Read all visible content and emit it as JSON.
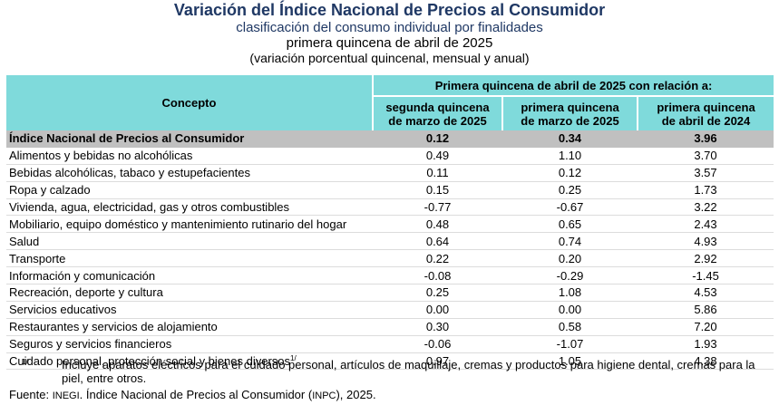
{
  "header": {
    "title": "Variación del Índice Nacional de Precios al Consumidor",
    "subtitle": "clasificación del consumo individual por finalidades",
    "period": "primera quincena de abril de 2025",
    "units": "(variación porcentual quincenal, mensual y anual)"
  },
  "table": {
    "concept_header": "Concepto",
    "group_header": "Primera quincena de abril de 2025 con relación a:",
    "col_headers": [
      {
        "line1": "segunda quincena",
        "line2": "de marzo de 2025"
      },
      {
        "line1": "primera quincena",
        "line2": "de marzo de 2025"
      },
      {
        "line1": "primera quincena",
        "line2": "de abril de 2024"
      }
    ],
    "rows": [
      {
        "concept": "Índice Nacional de Precios al Consumidor",
        "v1": "0.12",
        "v2": "0.34",
        "v3": "3.96"
      },
      {
        "concept": "Alimentos y bebidas no alcohólicas",
        "v1": "0.49",
        "v2": "1.10",
        "v3": "3.70"
      },
      {
        "concept": "Bebidas alcohólicas, tabaco y estupefacientes",
        "v1": "0.11",
        "v2": "0.12",
        "v3": "3.57"
      },
      {
        "concept": "Ropa y calzado",
        "v1": "0.15",
        "v2": "0.25",
        "v3": "1.73"
      },
      {
        "concept": "Vivienda, agua, electricidad, gas y otros combustibles",
        "v1": "-0.77",
        "v2": "-0.67",
        "v3": "3.22"
      },
      {
        "concept": "Mobiliario, equipo doméstico y mantenimiento rutinario del hogar",
        "v1": "0.48",
        "v2": "0.65",
        "v3": "2.43"
      },
      {
        "concept": "Salud",
        "v1": "0.64",
        "v2": "0.74",
        "v3": "4.93"
      },
      {
        "concept": "Transporte",
        "v1": "0.22",
        "v2": "0.20",
        "v3": "2.92"
      },
      {
        "concept": "Información y comunicación",
        "v1": "-0.08",
        "v2": "-0.29",
        "v3": "-1.45"
      },
      {
        "concept": "Recreación, deporte y cultura",
        "v1": "0.25",
        "v2": "1.08",
        "v3": "4.53"
      },
      {
        "concept": "Servicios educativos",
        "v1": "0.00",
        "v2": "0.00",
        "v3": "5.86"
      },
      {
        "concept": "Restaurantes y servicios de alojamiento",
        "v1": "0.30",
        "v2": "0.58",
        "v3": "7.20"
      },
      {
        "concept": "Seguros y servicios financieros",
        "v1": "-0.06",
        "v2": "-1.07",
        "v3": "1.93"
      },
      {
        "concept": "Cuidado personal, protección social y bienes diversos",
        "footnote": "1/",
        "v1": "0.97",
        "v2": "1.05",
        "v3": "4.38"
      }
    ]
  },
  "footnote": {
    "mark": "1/",
    "text": "Incluye aparatos eléctricos para el cuidado personal, artículos de maquillaje, cremas y productos para higiene dental, cremas para la piel, entre otros."
  },
  "source": {
    "label": "Fuente:",
    "org": "INEGI",
    "text_mid": ". Índice Nacional de Precios al Consumidor (",
    "abbr": "INPC",
    "text_end": "), 2025."
  }
}
